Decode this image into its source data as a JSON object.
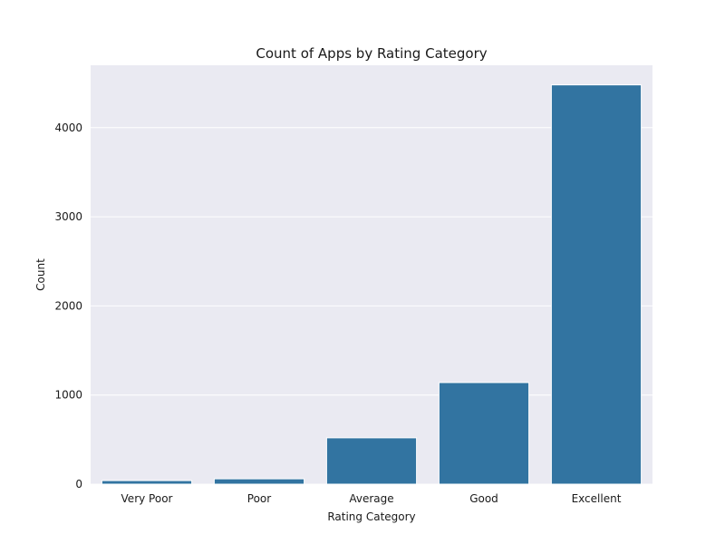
{
  "chart_data": {
    "type": "bar",
    "title": "Count of Apps by Rating Category",
    "xlabel": "Rating Category",
    "ylabel": "Count",
    "categories": [
      "Very Poor",
      "Poor",
      "Average",
      "Good",
      "Excellent"
    ],
    "values": [
      40,
      60,
      520,
      1140,
      4480
    ],
    "ylim": [
      0,
      4700
    ],
    "yticks": [
      0,
      1000,
      2000,
      3000,
      4000
    ],
    "grid": true,
    "colors": {
      "bar": "#3274a1",
      "plot_background": "#eaeaf2",
      "grid": "#ffffff"
    }
  }
}
